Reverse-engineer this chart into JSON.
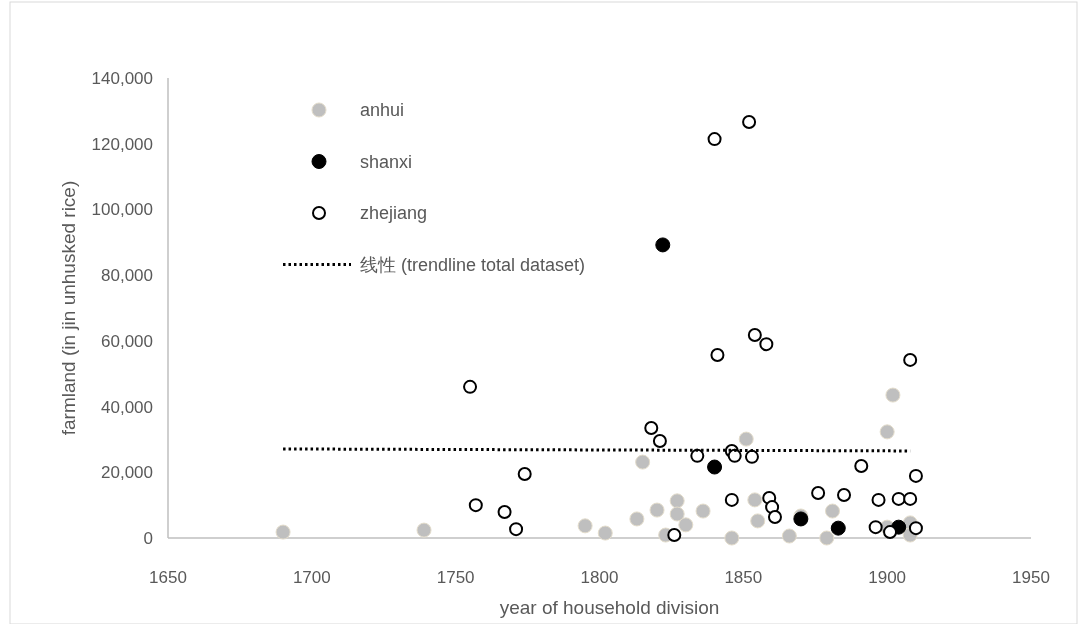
{
  "chart_data": {
    "type": "scatter",
    "xlabel": "year of household division",
    "ylabel": "farmland (in jin unhusked rice)",
    "xlim": [
      1650,
      1950
    ],
    "xticks": [
      1650,
      1700,
      1750,
      1800,
      1850,
      1900,
      1950
    ],
    "ylim": [
      0,
      140000
    ],
    "yticks": [
      {
        "value": 0,
        "label": "0"
      },
      {
        "value": 20000,
        "label": "20,000"
      },
      {
        "value": 40000,
        "label": "40,000"
      },
      {
        "value": 60000,
        "label": "60,000"
      },
      {
        "value": 80000,
        "label": "80,000"
      },
      {
        "value": 100000,
        "label": "100,000"
      },
      {
        "value": 120000,
        "label": "120,000"
      },
      {
        "value": 140000,
        "label": "140,000"
      }
    ],
    "grid": false,
    "legend": "top left",
    "series": [
      {
        "name": "anhui",
        "color": "#bfbfbf",
        "marker": "circle",
        "x": [
          1690,
          1739,
          1795,
          1802,
          1813,
          1815,
          1820,
          1823,
          1827,
          1827,
          1830,
          1836,
          1846,
          1851,
          1854,
          1855,
          1866,
          1870,
          1879,
          1881,
          1900,
          1902,
          1900,
          1908,
          1908
        ],
        "values": [
          1800,
          2400,
          3700,
          1500,
          5800,
          23100,
          8500,
          900,
          11300,
          7300,
          4000,
          8200,
          0,
          30100,
          11600,
          5200,
          600,
          6700,
          0,
          8200,
          32300,
          43500,
          3300,
          4600,
          900
        ]
      },
      {
        "name": "shanxi",
        "color": "#000000",
        "marker": "circle",
        "x": [
          1822,
          1840,
          1870,
          1883,
          1904
        ],
        "values": [
          89200,
          21600,
          5800,
          3000,
          3300
        ]
      },
      {
        "name": "zhejiang",
        "color": "#ffffff",
        "marker": "circle",
        "x": [
          1840,
          1852,
          1755,
          1757,
          1767,
          1771,
          1774,
          1818,
          1821,
          1834,
          1846,
          1847,
          1853,
          1846,
          1859,
          1860,
          1861,
          1876,
          1885,
          1891,
          1897,
          1904,
          1908,
          1910,
          1896,
          1901,
          1910,
          1826,
          1854,
          1858,
          1841,
          1908
        ],
        "values": [
          121400,
          126600,
          46000,
          10000,
          7900,
          2700,
          19500,
          33500,
          29500,
          25000,
          26500,
          25000,
          24700,
          11600,
          12200,
          9400,
          6400,
          13700,
          13100,
          21900,
          11600,
          11900,
          11900,
          18900,
          3300,
          1800,
          3000,
          900,
          61800,
          59000,
          55700,
          54200
        ]
      },
      {
        "name": "线性 (trendline total dataset)",
        "type": "line",
        "line_style": "dotted",
        "color": "#000000",
        "x": [
          1690,
          1908
        ],
        "values": [
          27100,
          26500
        ]
      }
    ]
  }
}
